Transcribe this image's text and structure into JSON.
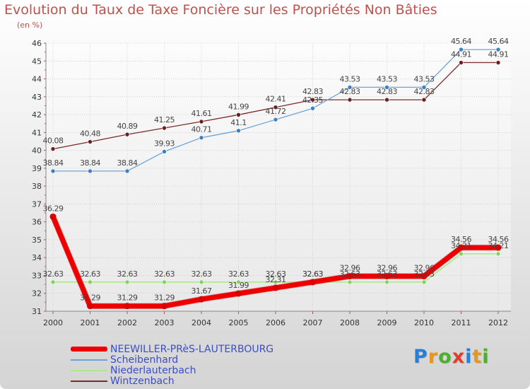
{
  "chart_data": {
    "type": "line",
    "title": "Evolution du Taux de Taxe Foncière sur les Propriétés Non Bâties",
    "ylabel": "(en %)",
    "xlabel": "",
    "ylim": [
      31,
      46
    ],
    "yticks": [
      31,
      32,
      33,
      34,
      35,
      36,
      37,
      38,
      39,
      40,
      41,
      42,
      43,
      44,
      45,
      46
    ],
    "categories": [
      "2000",
      "2001",
      "2002",
      "2003",
      "2004",
      "2005",
      "2006",
      "2007",
      "2008",
      "2009",
      "2010",
      "2011",
      "2012"
    ],
    "series": [
      {
        "name": "Wintzenbach",
        "color": "#7a2a2a",
        "marker": "#6b1f1f",
        "width": 1.3,
        "values": [
          40.08,
          40.48,
          40.89,
          41.25,
          41.61,
          41.99,
          42.41,
          42.83,
          42.83,
          42.83,
          42.83,
          44.91,
          44.91
        ],
        "labels": [
          "40.08",
          "40.48",
          "40.89",
          "41.25",
          "41.61",
          "41.99",
          "42.41",
          "42.83",
          "42.83",
          "42.83",
          "42.83",
          "44.91",
          "44.91"
        ]
      },
      {
        "name": "Scheibenhard",
        "color": "#6fa3d6",
        "marker": "#3b7fc4",
        "width": 1.3,
        "values": [
          38.84,
          38.84,
          38.84,
          39.93,
          40.71,
          41.1,
          41.72,
          42.35,
          43.53,
          43.53,
          43.53,
          45.64,
          45.64
        ],
        "labels": [
          "38.84",
          "38.84",
          "38.84",
          "39.93",
          "40.71",
          "41.1",
          "41.72",
          "42.35",
          "43.53",
          "43.53",
          "43.53",
          "45.64",
          "45.64"
        ]
      },
      {
        "name": "Niederlauterbach",
        "color": "#aee88a",
        "marker": "#7fd45a",
        "width": 1.6,
        "values": [
          32.63,
          32.63,
          32.63,
          32.63,
          32.63,
          32.63,
          32.63,
          32.63,
          32.63,
          32.63,
          32.63,
          34.21,
          34.21
        ],
        "labels": [
          "32.63",
          "32.63",
          "32.63",
          "32.63",
          "32.63",
          "32.63",
          "32.63",
          "32.63",
          "32.63",
          "32.63",
          "32.63",
          "34.21",
          "34.21"
        ]
      },
      {
        "name": "NEEWILLER-PRèS-LAUTERBOURG",
        "color": "#ee0000",
        "marker": "#dd0000",
        "width": 7,
        "values": [
          36.29,
          31.29,
          31.29,
          31.29,
          31.67,
          31.99,
          32.31,
          32.63,
          32.96,
          32.96,
          32.96,
          34.56,
          34.56
        ],
        "labels": [
          "36.29",
          "31.29",
          "31.29",
          "31.29",
          "31.67",
          "31.99",
          "32.31",
          "32.63",
          "32.96",
          "32.96",
          "32.96",
          "34.56",
          "34.56"
        ]
      }
    ]
  },
  "legend": {
    "items": [
      {
        "label": "NEEWILLER-PRèS-LAUTERBOURG",
        "color": "#ee0000",
        "thickness": 7
      },
      {
        "label": "Scheibenhard",
        "color": "#6fa3d6",
        "thickness": 2
      },
      {
        "label": "Niederlauterbach",
        "color": "#aee88a",
        "thickness": 2
      },
      {
        "label": "Wintzenbach",
        "color": "#7a2a2a",
        "thickness": 2
      }
    ]
  },
  "brand": {
    "letters": [
      "P",
      "r",
      "o",
      "x",
      "i",
      "t",
      "i"
    ],
    "colors": [
      "#2a7fd4",
      "#e8961e",
      "#4caf30",
      "#e83a2a",
      "#2a7fd4",
      "#e8961e",
      "#4caf30"
    ]
  }
}
